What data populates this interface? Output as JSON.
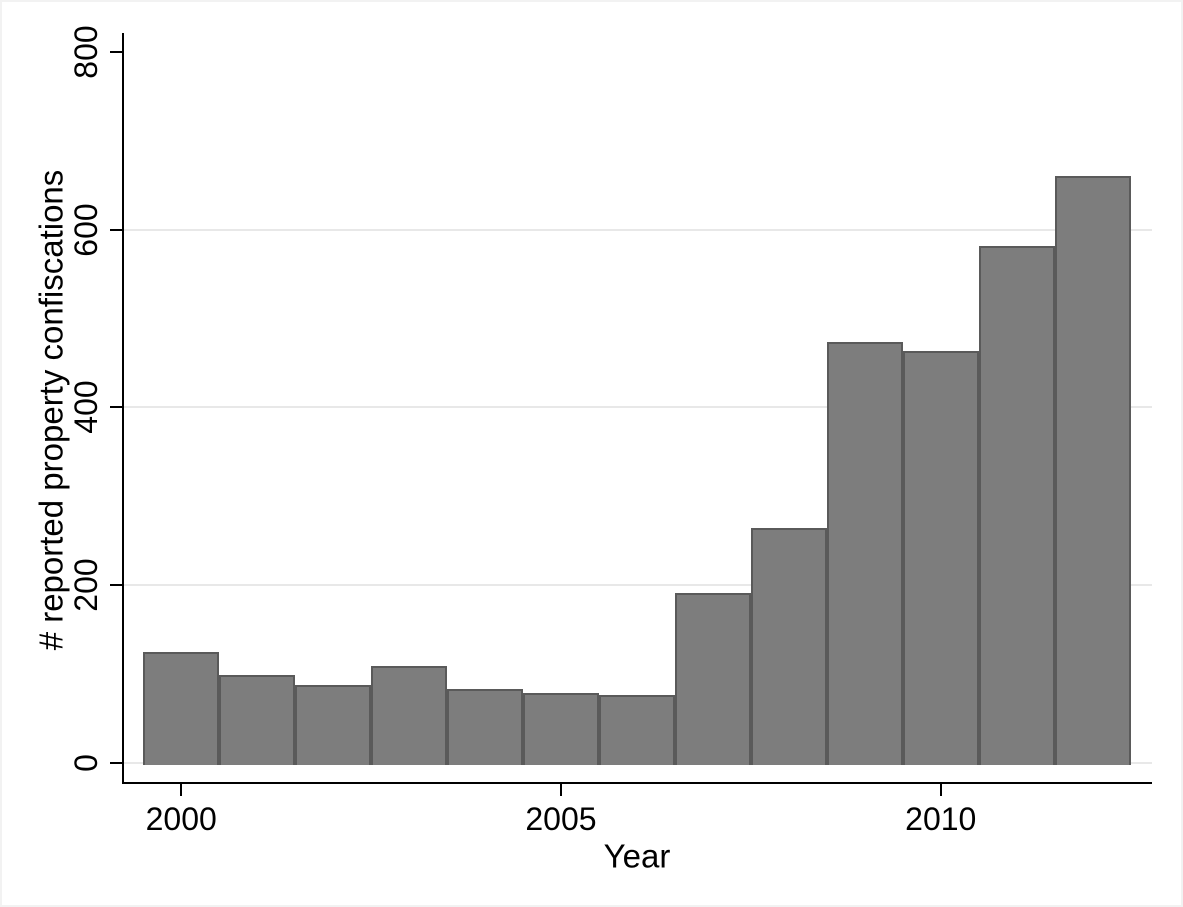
{
  "chart_data": {
    "type": "bar",
    "subtype": "histogram",
    "title": "",
    "xlabel": "Year",
    "ylabel": "# reported property confiscations",
    "categories": [
      2000,
      2001,
      2002,
      2003,
      2004,
      2005,
      2006,
      2007,
      2008,
      2009,
      2010,
      2011,
      2012
    ],
    "values": [
      125,
      99,
      87,
      109,
      83,
      78,
      76,
      191,
      264,
      474,
      463,
      582,
      660
    ],
    "xticks": [
      2000,
      2005,
      2010
    ],
    "yticks": [
      0,
      200,
      400,
      600,
      800
    ],
    "gridlines_at": [
      0,
      200,
      400,
      600
    ],
    "ylim": [
      0,
      800
    ],
    "grid": "horizontal",
    "legend": "none",
    "colors": {
      "bar_fill": "#7d7d7d",
      "bar_border": "#5a5a5a",
      "grid": "#e8e8e8",
      "axis": "#000000",
      "text": "#000000",
      "background": "#ffffff"
    }
  }
}
